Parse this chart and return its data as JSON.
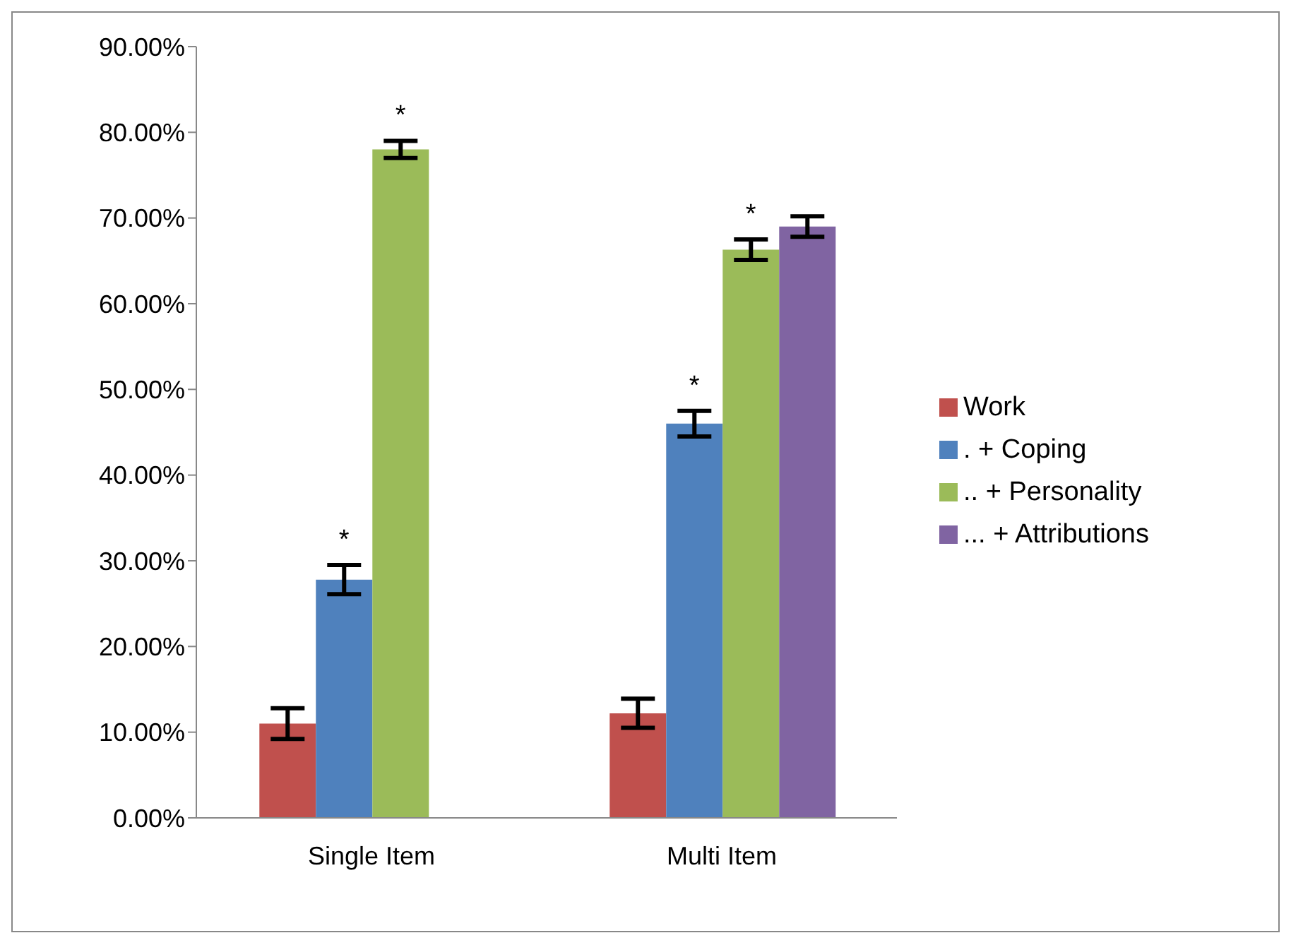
{
  "chart_data": {
    "type": "bar",
    "categories": [
      "Single Item",
      "Multi Item"
    ],
    "series": [
      {
        "name": "Work",
        "color": "#c0504d",
        "values": [
          11.0,
          12.2
        ],
        "errors": [
          1.8,
          1.7
        ],
        "value_labels": [
          null,
          null
        ]
      },
      {
        "name": ". + Coping",
        "color": "#4f81bd",
        "values": [
          27.8,
          46.0
        ],
        "errors": [
          1.7,
          1.5
        ],
        "value_labels": [
          "*",
          "*"
        ]
      },
      {
        "name": ".. + Personality",
        "color": "#9bbb59",
        "values": [
          78.0,
          66.3
        ],
        "errors": [
          1.0,
          1.2
        ],
        "value_labels": [
          "*",
          "*"
        ]
      },
      {
        "name": "... + Attributions",
        "color": "#8064a2",
        "values": [
          null,
          69.0
        ],
        "errors": [
          null,
          1.2
        ],
        "value_labels": [
          null,
          null
        ]
      }
    ],
    "ylim": [
      0,
      90
    ],
    "yticks": [
      {
        "value": 0,
        "label": "0.00%"
      },
      {
        "value": 10,
        "label": "10.00%"
      },
      {
        "value": 20,
        "label": "20.00%"
      },
      {
        "value": 30,
        "label": "30.00%"
      },
      {
        "value": 40,
        "label": "40.00%"
      },
      {
        "value": 50,
        "label": "50.00%"
      },
      {
        "value": 60,
        "label": "60.00%"
      },
      {
        "value": 70,
        "label": "70.00%"
      },
      {
        "value": 80,
        "label": "80.00%"
      },
      {
        "value": 90,
        "label": "90.00%"
      }
    ],
    "grid": false,
    "legend": "right"
  }
}
